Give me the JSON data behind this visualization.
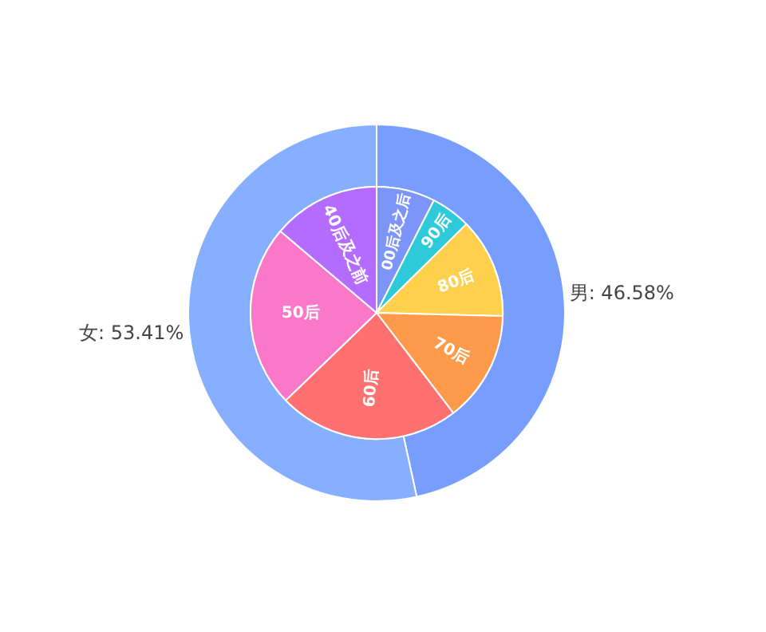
{
  "chart_data": [
    {
      "type": "donut",
      "categories": [
        "男: 46.58%",
        "女: 53.41%"
      ],
      "values": [
        46.58,
        53.41
      ],
      "colors": [
        "#779dff",
        "#86afff"
      ]
    },
    {
      "type": "pie",
      "categories": [
        "00后及之后",
        "90后",
        "80后",
        "70后",
        "60后",
        "50后",
        "40后及之前"
      ],
      "values": [
        7.5,
        5.1,
        12.8,
        14.2,
        23.2,
        23.4,
        13.8
      ],
      "colors": [
        "#7d94fb",
        "#2fcad9",
        "#ffd04b",
        "#ff9a4b",
        "#ff7170",
        "#fb78c8",
        "#b46bff"
      ]
    }
  ]
}
